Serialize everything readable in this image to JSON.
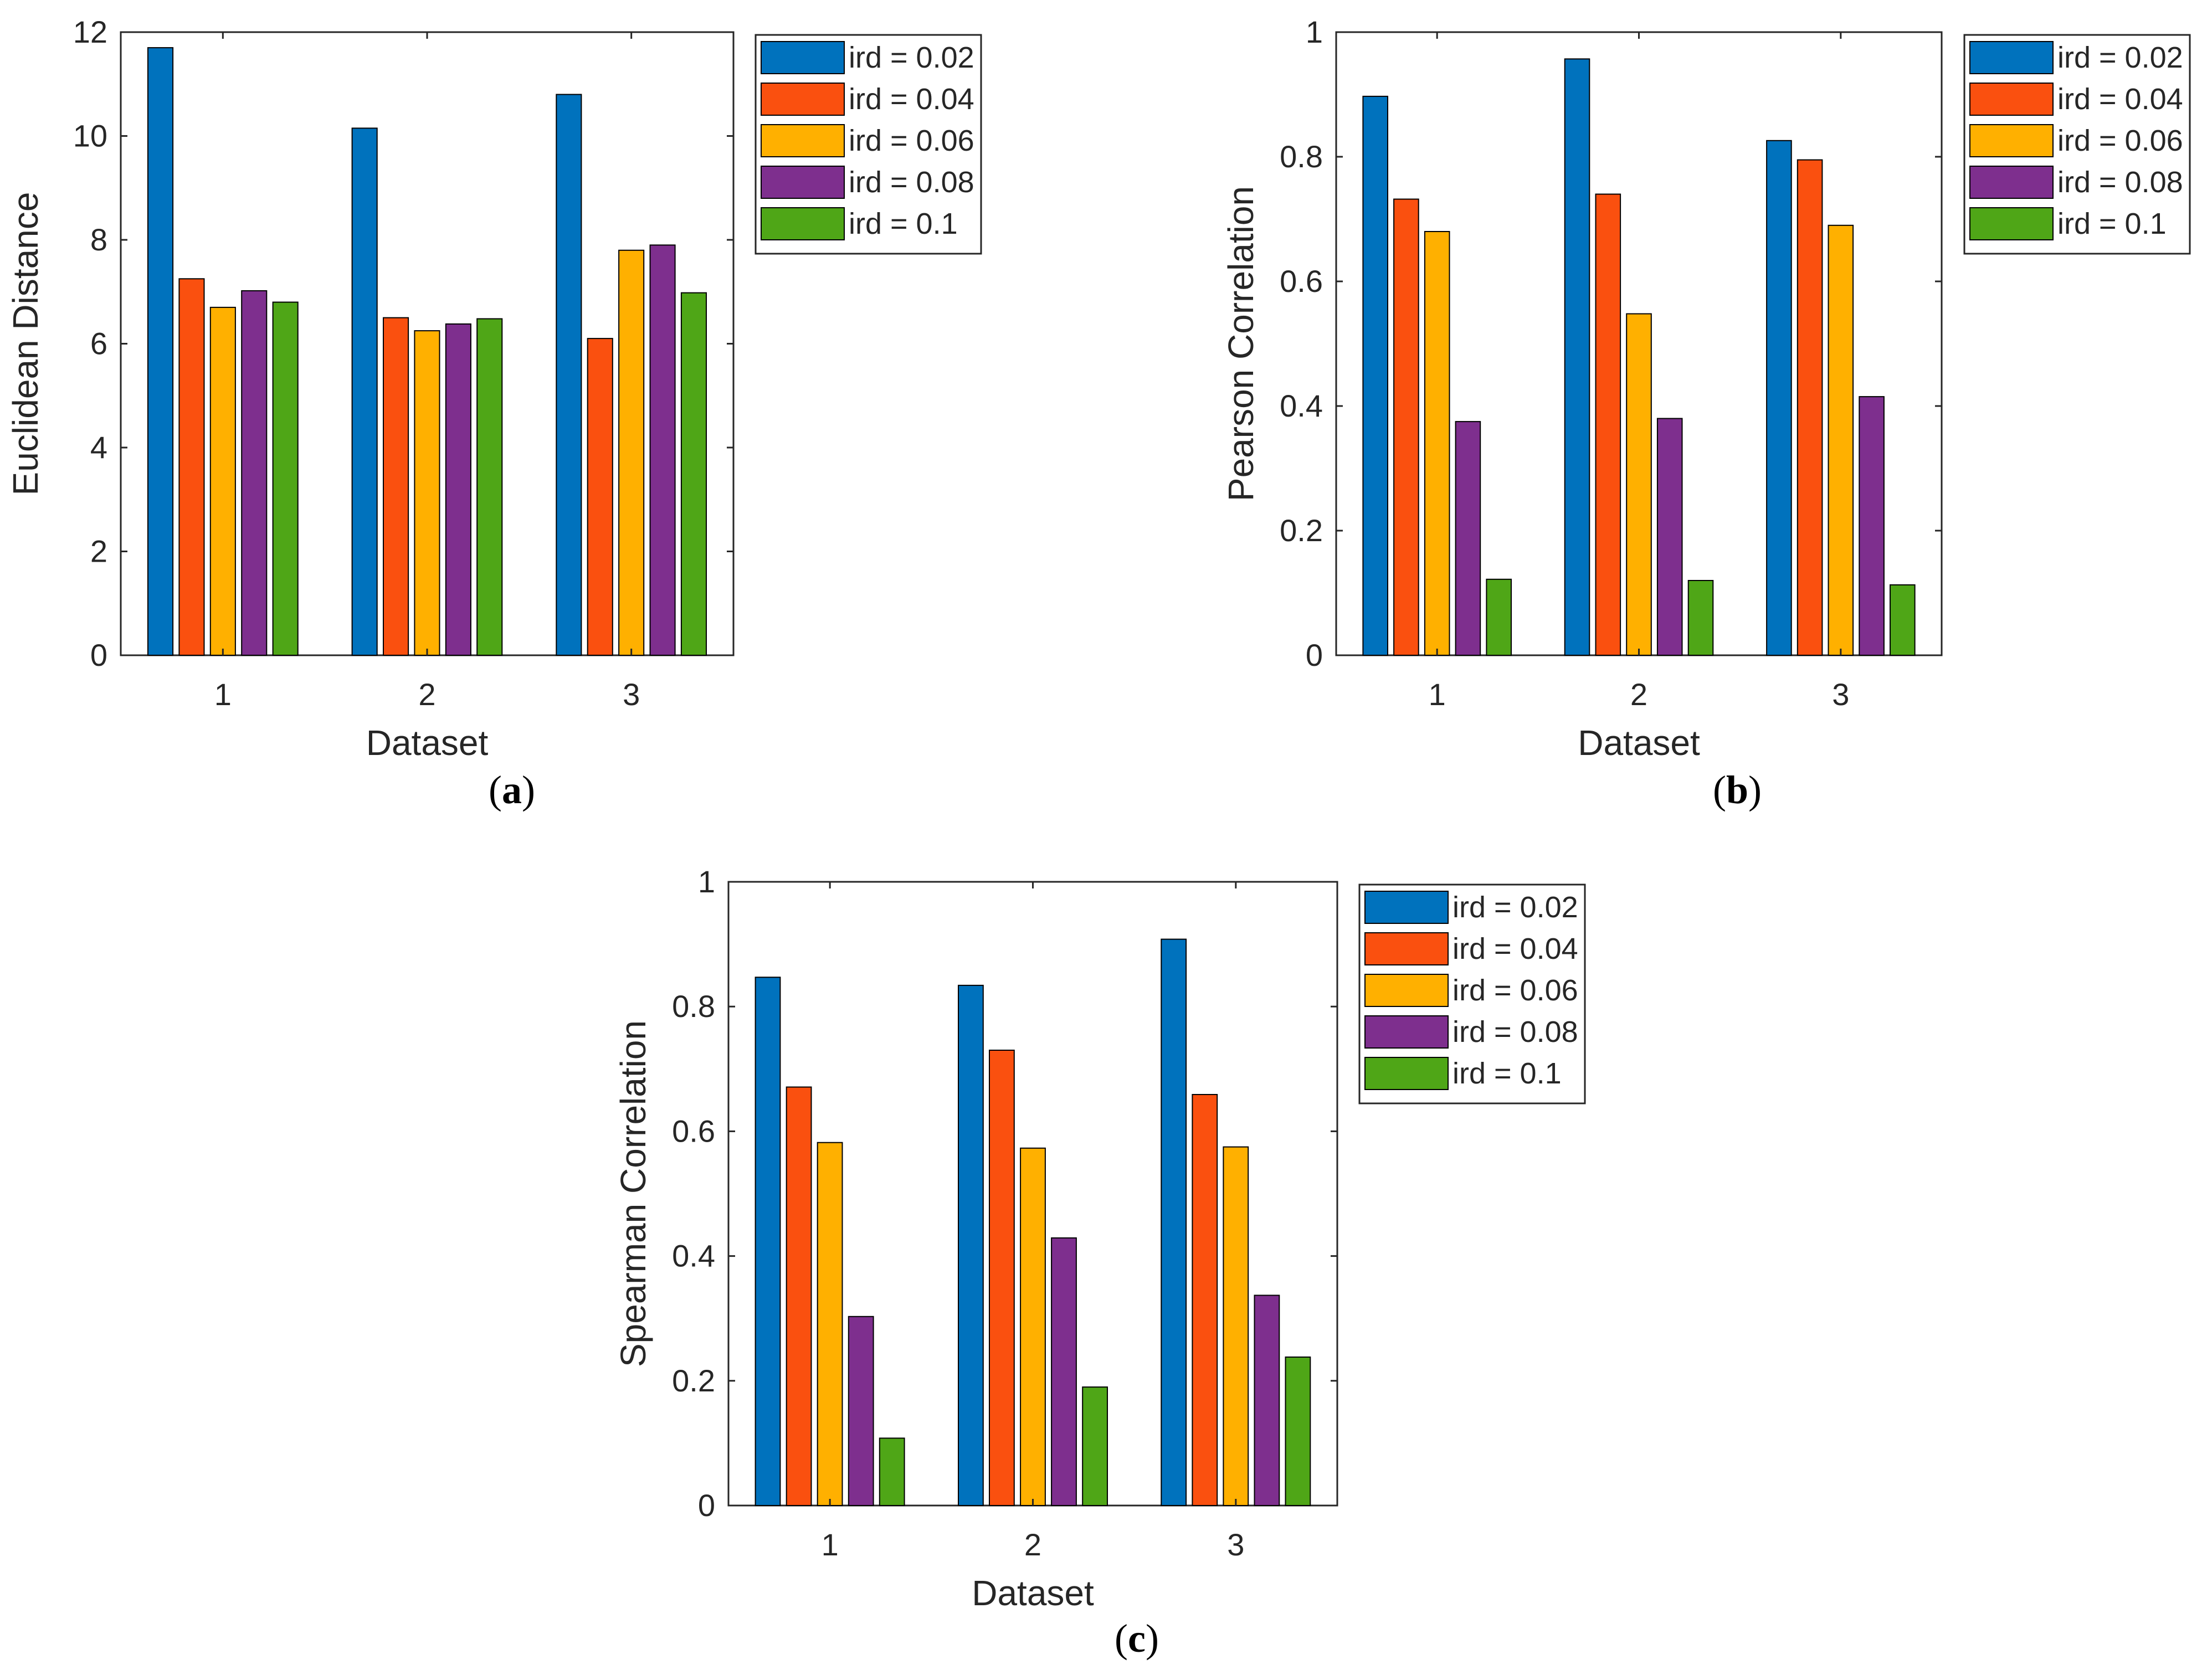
{
  "colors": [
    "#0072BD",
    "#FA500F",
    "#FFB000",
    "#7E2F8E",
    "#4FA617"
  ],
  "chart_data": [
    {
      "type": "bar",
      "panel_label": "a",
      "xlabel": "Dataset",
      "ylabel": "Euclidean Distance",
      "categories": [
        "1",
        "2",
        "3"
      ],
      "ylim": [
        0,
        12
      ],
      "yticks": [
        "0",
        "2",
        "4",
        "6",
        "8",
        "10",
        "12"
      ],
      "legend_position": "outside-right",
      "series": [
        {
          "name": "ird = 0.02",
          "values": [
            11.7,
            10.15,
            10.8
          ]
        },
        {
          "name": "ird = 0.04",
          "values": [
            7.25,
            6.5,
            6.1
          ]
        },
        {
          "name": "ird = 0.06",
          "values": [
            6.7,
            6.25,
            7.8
          ]
        },
        {
          "name": "ird = 0.08",
          "values": [
            7.02,
            6.38,
            7.9
          ]
        },
        {
          "name": "ird = 0.1",
          "values": [
            6.8,
            6.48,
            6.98
          ]
        }
      ]
    },
    {
      "type": "bar",
      "panel_label": "b",
      "xlabel": "Dataset",
      "ylabel": "Pearson Correlation",
      "categories": [
        "1",
        "2",
        "3"
      ],
      "ylim": [
        0,
        1
      ],
      "yticks": [
        "0",
        "0.2",
        "0.4",
        "0.6",
        "0.8",
        "1"
      ],
      "legend_position": "outside-right",
      "series": [
        {
          "name": "ird = 0.02",
          "values": [
            0.897,
            0.957,
            0.826
          ]
        },
        {
          "name": "ird = 0.04",
          "values": [
            0.732,
            0.74,
            0.795
          ]
        },
        {
          "name": "ird = 0.06",
          "values": [
            0.68,
            0.548,
            0.69
          ]
        },
        {
          "name": "ird = 0.08",
          "values": [
            0.375,
            0.38,
            0.415
          ]
        },
        {
          "name": "ird = 0.1",
          "values": [
            0.122,
            0.12,
            0.113
          ]
        }
      ]
    },
    {
      "type": "bar",
      "panel_label": "c",
      "xlabel": "Dataset",
      "ylabel": "Spearman Correlation",
      "categories": [
        "1",
        "2",
        "3"
      ],
      "ylim": [
        0,
        1
      ],
      "yticks": [
        "0",
        "0.2",
        "0.4",
        "0.6",
        "0.8",
        "1"
      ],
      "legend_position": "outside-right",
      "series": [
        {
          "name": "ird = 0.02",
          "values": [
            0.847,
            0.834,
            0.908
          ]
        },
        {
          "name": "ird = 0.04",
          "values": [
            0.671,
            0.73,
            0.659
          ]
        },
        {
          "name": "ird = 0.06",
          "values": [
            0.582,
            0.573,
            0.575
          ]
        },
        {
          "name": "ird = 0.08",
          "values": [
            0.303,
            0.429,
            0.337
          ]
        },
        {
          "name": "ird = 0.1",
          "values": [
            0.108,
            0.19,
            0.238
          ]
        }
      ]
    }
  ]
}
